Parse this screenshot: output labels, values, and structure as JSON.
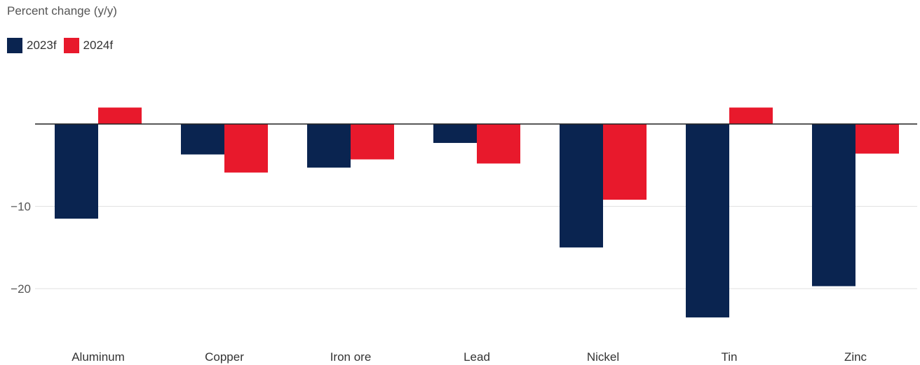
{
  "chart_data": {
    "type": "bar",
    "ylabel": "Percent change (y/y)",
    "categories": [
      "Aluminum",
      "Copper",
      "Iron ore",
      "Lead",
      "Nickel",
      "Tin",
      "Zinc"
    ],
    "series": [
      {
        "name": "2023f",
        "color": "#0a2450",
        "values": [
          -11.5,
          -3.7,
          -5.3,
          -2.3,
          -15.0,
          -23.5,
          -19.7
        ]
      },
      {
        "name": "2024f",
        "color": "#e8192c",
        "values": [
          2.0,
          -5.9,
          -4.3,
          -4.8,
          -9.2,
          2.0,
          -3.6
        ]
      }
    ],
    "yticks": [
      -10,
      -20
    ],
    "ylim": [
      -26,
      4
    ],
    "grid": true,
    "legend": "top-left"
  }
}
